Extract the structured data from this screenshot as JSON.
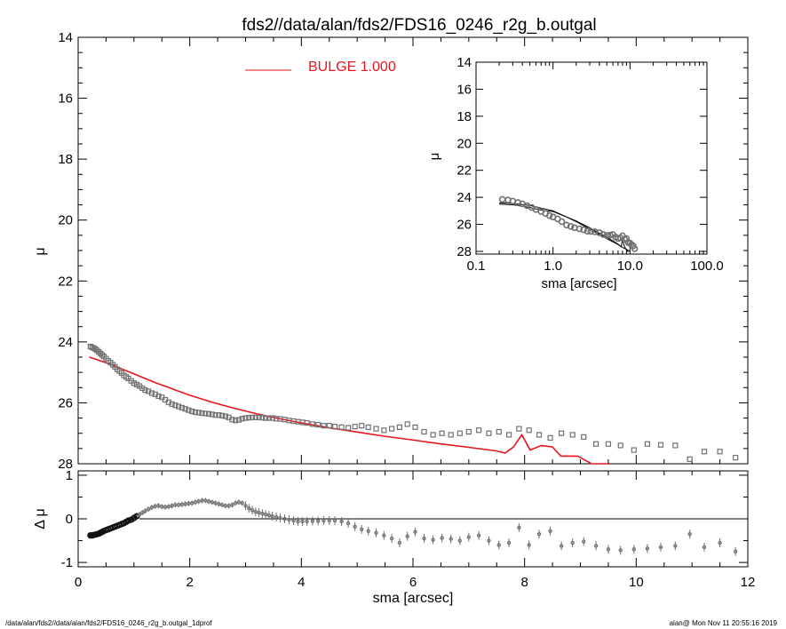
{
  "title": "fds2//data/alan/fds2/FDS16_0246_r2g_b.outgal",
  "footer": {
    "left": "/data/alan/fds2//data/alan/fds2/FDS16_0246_r2g_b.outgal_1dprof",
    "right": "alan@  Mon Nov 11 20:55:16 2019"
  },
  "colors": {
    "model": "#e8161c",
    "data": "#707070",
    "axis": "#000000"
  },
  "chart_data": [
    {
      "id": "main",
      "type": "scatter",
      "xlabel": "sma [arcsec]",
      "ylabel": "μ",
      "xlim": [
        0,
        12
      ],
      "ylim": [
        28,
        14
      ],
      "xticks": [
        0,
        2,
        4,
        6,
        8,
        10,
        12
      ],
      "yticks": [
        14,
        16,
        18,
        20,
        22,
        24,
        26,
        28
      ],
      "legend": {
        "label": "BULGE  1.000",
        "position": "top-center"
      },
      "series": [
        {
          "name": "data",
          "marker": "square",
          "x": [
            0.22,
            0.25,
            0.28,
            0.31,
            0.34,
            0.37,
            0.4,
            0.43,
            0.46,
            0.5,
            0.54,
            0.58,
            0.62,
            0.66,
            0.7,
            0.74,
            0.78,
            0.82,
            0.86,
            0.9,
            0.95,
            1.0,
            1.05,
            1.1,
            1.15,
            1.2,
            1.26,
            1.32,
            1.38,
            1.44,
            1.5,
            1.56,
            1.62,
            1.68,
            1.74,
            1.8,
            1.86,
            1.92,
            1.98,
            2.04,
            2.1,
            2.16,
            2.22,
            2.28,
            2.34,
            2.4,
            2.46,
            2.52,
            2.58,
            2.64,
            2.7,
            2.76,
            2.82,
            2.88,
            2.94,
            3.0,
            3.06,
            3.12,
            3.18,
            3.24,
            3.3,
            3.36,
            3.42,
            3.48,
            3.55,
            3.62,
            3.7,
            3.78,
            3.86,
            3.94,
            4.02,
            4.1,
            4.2,
            4.3,
            4.4,
            4.5,
            4.6,
            4.72,
            4.84,
            4.96,
            5.08,
            5.2,
            5.34,
            5.48,
            5.62,
            5.76,
            5.9,
            6.04,
            6.2,
            6.36,
            6.52,
            6.68,
            6.84,
            7.0,
            7.18,
            7.36,
            7.54,
            7.72,
            7.9,
            8.08,
            8.26,
            8.46,
            8.66,
            8.86,
            9.06,
            9.28,
            9.5,
            9.72,
            9.96,
            10.2,
            10.44,
            10.7,
            10.96,
            11.22,
            11.5,
            11.78
          ],
          "y": [
            24.15,
            24.18,
            24.2,
            24.24,
            24.28,
            24.33,
            24.38,
            24.43,
            24.48,
            24.55,
            24.62,
            24.68,
            24.75,
            24.82,
            24.9,
            24.96,
            25.02,
            25.1,
            25.15,
            25.2,
            25.28,
            25.35,
            25.4,
            25.45,
            25.52,
            25.58,
            25.62,
            25.68,
            25.72,
            25.78,
            25.82,
            25.9,
            25.98,
            26.04,
            26.08,
            26.12,
            26.16,
            26.2,
            26.24,
            26.28,
            26.31,
            26.32,
            26.34,
            26.35,
            26.36,
            26.38,
            26.4,
            26.4,
            26.42,
            26.44,
            26.48,
            26.55,
            26.58,
            26.56,
            26.52,
            26.5,
            26.49,
            26.48,
            26.48,
            26.48,
            26.49,
            26.5,
            26.5,
            26.5,
            26.52,
            26.53,
            26.55,
            26.58,
            26.6,
            26.62,
            26.64,
            26.66,
            26.7,
            26.72,
            26.75,
            26.75,
            26.78,
            26.8,
            26.82,
            26.78,
            26.75,
            26.8,
            26.85,
            26.9,
            26.85,
            26.8,
            26.7,
            26.8,
            26.95,
            27.05,
            27.0,
            27.05,
            27.0,
            26.95,
            26.9,
            27.0,
            26.95,
            27.05,
            26.85,
            26.9,
            27.05,
            27.15,
            27.0,
            27.05,
            27.12,
            27.35,
            27.35,
            27.4,
            27.55,
            27.35,
            27.38,
            27.4,
            27.85,
            27.6,
            27.6,
            27.8
          ]
        },
        {
          "name": "BULGE  1.000",
          "marker": "line",
          "x": [
            0.2,
            0.4,
            0.6,
            0.8,
            1.0,
            1.2,
            1.4,
            1.6,
            1.8,
            2.0,
            2.4,
            2.8,
            3.2,
            3.6,
            4.0,
            4.5,
            5.0,
            5.5,
            6.0,
            6.5,
            7.0,
            7.5,
            7.65,
            7.8,
            7.95,
            8.1,
            8.3,
            8.5,
            8.65,
            8.95,
            9.05,
            9.2,
            9.5
          ],
          "y": [
            24.5,
            24.62,
            24.75,
            24.9,
            25.05,
            25.2,
            25.35,
            25.48,
            25.62,
            25.75,
            25.98,
            26.18,
            26.36,
            26.52,
            26.66,
            26.82,
            26.96,
            27.1,
            27.22,
            27.35,
            27.46,
            27.58,
            27.65,
            27.45,
            27.05,
            27.55,
            27.4,
            27.45,
            27.75,
            27.75,
            27.85,
            28.0,
            28.0
          ]
        }
      ]
    },
    {
      "id": "residual",
      "type": "scatter",
      "xlabel": "sma [arcsec]",
      "ylabel": "Δ μ",
      "xlim": [
        0,
        12
      ],
      "ylim": [
        -1.1,
        1.1
      ],
      "xticks": [
        0,
        2,
        4,
        6,
        8,
        10,
        12
      ],
      "yticks": [
        1,
        0,
        -1
      ],
      "zero_line": true,
      "series": [
        {
          "name": "residual",
          "marker": "errorbar",
          "x": [
            0.22,
            0.25,
            0.28,
            0.31,
            0.34,
            0.37,
            0.4,
            0.43,
            0.46,
            0.5,
            0.54,
            0.58,
            0.62,
            0.66,
            0.7,
            0.74,
            0.78,
            0.82,
            0.86,
            0.9,
            0.95,
            1.0,
            1.05,
            1.1,
            1.15,
            1.2,
            1.26,
            1.32,
            1.38,
            1.44,
            1.5,
            1.56,
            1.62,
            1.68,
            1.74,
            1.8,
            1.86,
            1.92,
            1.98,
            2.04,
            2.1,
            2.16,
            2.22,
            2.28,
            2.34,
            2.4,
            2.46,
            2.52,
            2.58,
            2.64,
            2.7,
            2.76,
            2.82,
            2.88,
            2.94,
            3.0,
            3.06,
            3.12,
            3.18,
            3.24,
            3.3,
            3.36,
            3.42,
            3.48,
            3.55,
            3.62,
            3.7,
            3.78,
            3.86,
            3.94,
            4.02,
            4.1,
            4.2,
            4.3,
            4.4,
            4.5,
            4.6,
            4.72,
            4.84,
            4.96,
            5.08,
            5.2,
            5.34,
            5.48,
            5.62,
            5.76,
            5.9,
            6.04,
            6.2,
            6.36,
            6.52,
            6.68,
            6.84,
            7.0,
            7.18,
            7.36,
            7.54,
            7.72,
            7.9,
            8.08,
            8.26,
            8.46,
            8.66,
            8.86,
            9.06,
            9.28,
            9.5,
            9.72,
            9.96,
            10.2,
            10.44,
            10.7,
            10.96,
            11.22,
            11.5,
            11.78
          ],
          "y": [
            -0.38,
            -0.38,
            -0.37,
            -0.36,
            -0.35,
            -0.34,
            -0.32,
            -0.3,
            -0.28,
            -0.26,
            -0.24,
            -0.22,
            -0.2,
            -0.18,
            -0.16,
            -0.14,
            -0.12,
            -0.1,
            -0.07,
            -0.04,
            -0.02,
            0.02,
            0.06,
            0.1,
            0.14,
            0.18,
            0.22,
            0.26,
            0.29,
            0.3,
            0.28,
            0.27,
            0.28,
            0.3,
            0.32,
            0.32,
            0.33,
            0.34,
            0.35,
            0.36,
            0.38,
            0.4,
            0.42,
            0.42,
            0.4,
            0.38,
            0.36,
            0.34,
            0.32,
            0.3,
            0.3,
            0.32,
            0.36,
            0.38,
            0.36,
            0.3,
            0.24,
            0.2,
            0.16,
            0.14,
            0.12,
            0.1,
            0.08,
            0.06,
            0.04,
            0.02,
            0.0,
            -0.02,
            -0.04,
            -0.06,
            -0.06,
            -0.06,
            -0.05,
            -0.05,
            -0.04,
            -0.04,
            -0.04,
            -0.06,
            -0.1,
            -0.18,
            -0.24,
            -0.28,
            -0.32,
            -0.38,
            -0.45,
            -0.55,
            -0.4,
            -0.3,
            -0.45,
            -0.48,
            -0.44,
            -0.46,
            -0.5,
            -0.42,
            -0.38,
            -0.5,
            -0.6,
            -0.55,
            -0.2,
            -0.6,
            -0.35,
            -0.28,
            -0.62,
            -0.55,
            -0.52,
            -0.62,
            -0.7,
            -0.72,
            -0.7,
            -0.68,
            -0.65,
            -0.62,
            -0.35,
            -0.65,
            -0.55,
            -0.75
          ]
        }
      ]
    },
    {
      "id": "inset",
      "type": "line",
      "xlabel": "sma [arcsec]",
      "ylabel": "μ",
      "xscale": "log",
      "xlim": [
        0.1,
        100
      ],
      "ylim": [
        28.2,
        14
      ],
      "xticks": [
        0.1,
        1,
        10,
        100
      ],
      "xtick_labels": [
        "0.1",
        "1.0",
        "10.0",
        "100.0"
      ],
      "yticks": [
        14,
        16,
        18,
        20,
        22,
        24,
        26,
        28
      ],
      "series": [
        {
          "name": "data",
          "marker": "circle",
          "x": [
            0.22,
            0.26,
            0.3,
            0.35,
            0.4,
            0.46,
            0.53,
            0.6,
            0.7,
            0.8,
            0.9,
            1.0,
            1.15,
            1.3,
            1.5,
            1.7,
            1.9,
            2.2,
            2.5,
            2.8,
            3.1,
            3.5,
            4.0,
            4.5,
            5.0,
            5.5,
            6.0,
            6.5,
            7.0,
            7.5,
            8.0,
            8.5,
            9.0,
            9.5,
            10.0,
            10.5,
            11.0,
            11.5
          ],
          "y": [
            24.15,
            24.2,
            24.28,
            24.38,
            24.48,
            24.62,
            24.75,
            24.9,
            25.05,
            25.2,
            25.35,
            25.45,
            25.6,
            25.8,
            26.05,
            26.15,
            26.25,
            26.33,
            26.4,
            26.5,
            26.52,
            26.55,
            26.62,
            26.75,
            26.82,
            26.8,
            26.75,
            26.95,
            27.05,
            27.0,
            26.85,
            27.1,
            27.05,
            27.35,
            27.4,
            27.5,
            27.6,
            27.8
          ]
        },
        {
          "name": "model",
          "marker": "line",
          "x": [
            0.2,
            0.3,
            0.5,
            0.7,
            1.0,
            1.5,
            2.0,
            3.0,
            4.0,
            5.0,
            6.0,
            7.0,
            7.7,
            8.0,
            8.3,
            8.6,
            9.0,
            9.5
          ],
          "y": [
            24.5,
            24.55,
            24.75,
            24.95,
            25.05,
            25.45,
            25.75,
            26.25,
            26.66,
            26.96,
            27.22,
            27.46,
            27.65,
            27.05,
            27.5,
            27.7,
            27.9,
            28.05
          ]
        },
        {
          "name": "model-2",
          "marker": "line",
          "x": [
            0.2,
            0.3,
            0.5,
            0.7,
            1.0,
            1.5,
            2.0,
            3.0,
            4.0,
            5.0,
            6.0,
            7.0,
            8.0,
            9.0,
            10.0
          ],
          "y": [
            24.4,
            24.45,
            24.6,
            24.8,
            25.0,
            25.45,
            25.8,
            26.35,
            26.75,
            27.05,
            27.3,
            27.5,
            27.7,
            27.85,
            28.0
          ]
        }
      ]
    }
  ]
}
